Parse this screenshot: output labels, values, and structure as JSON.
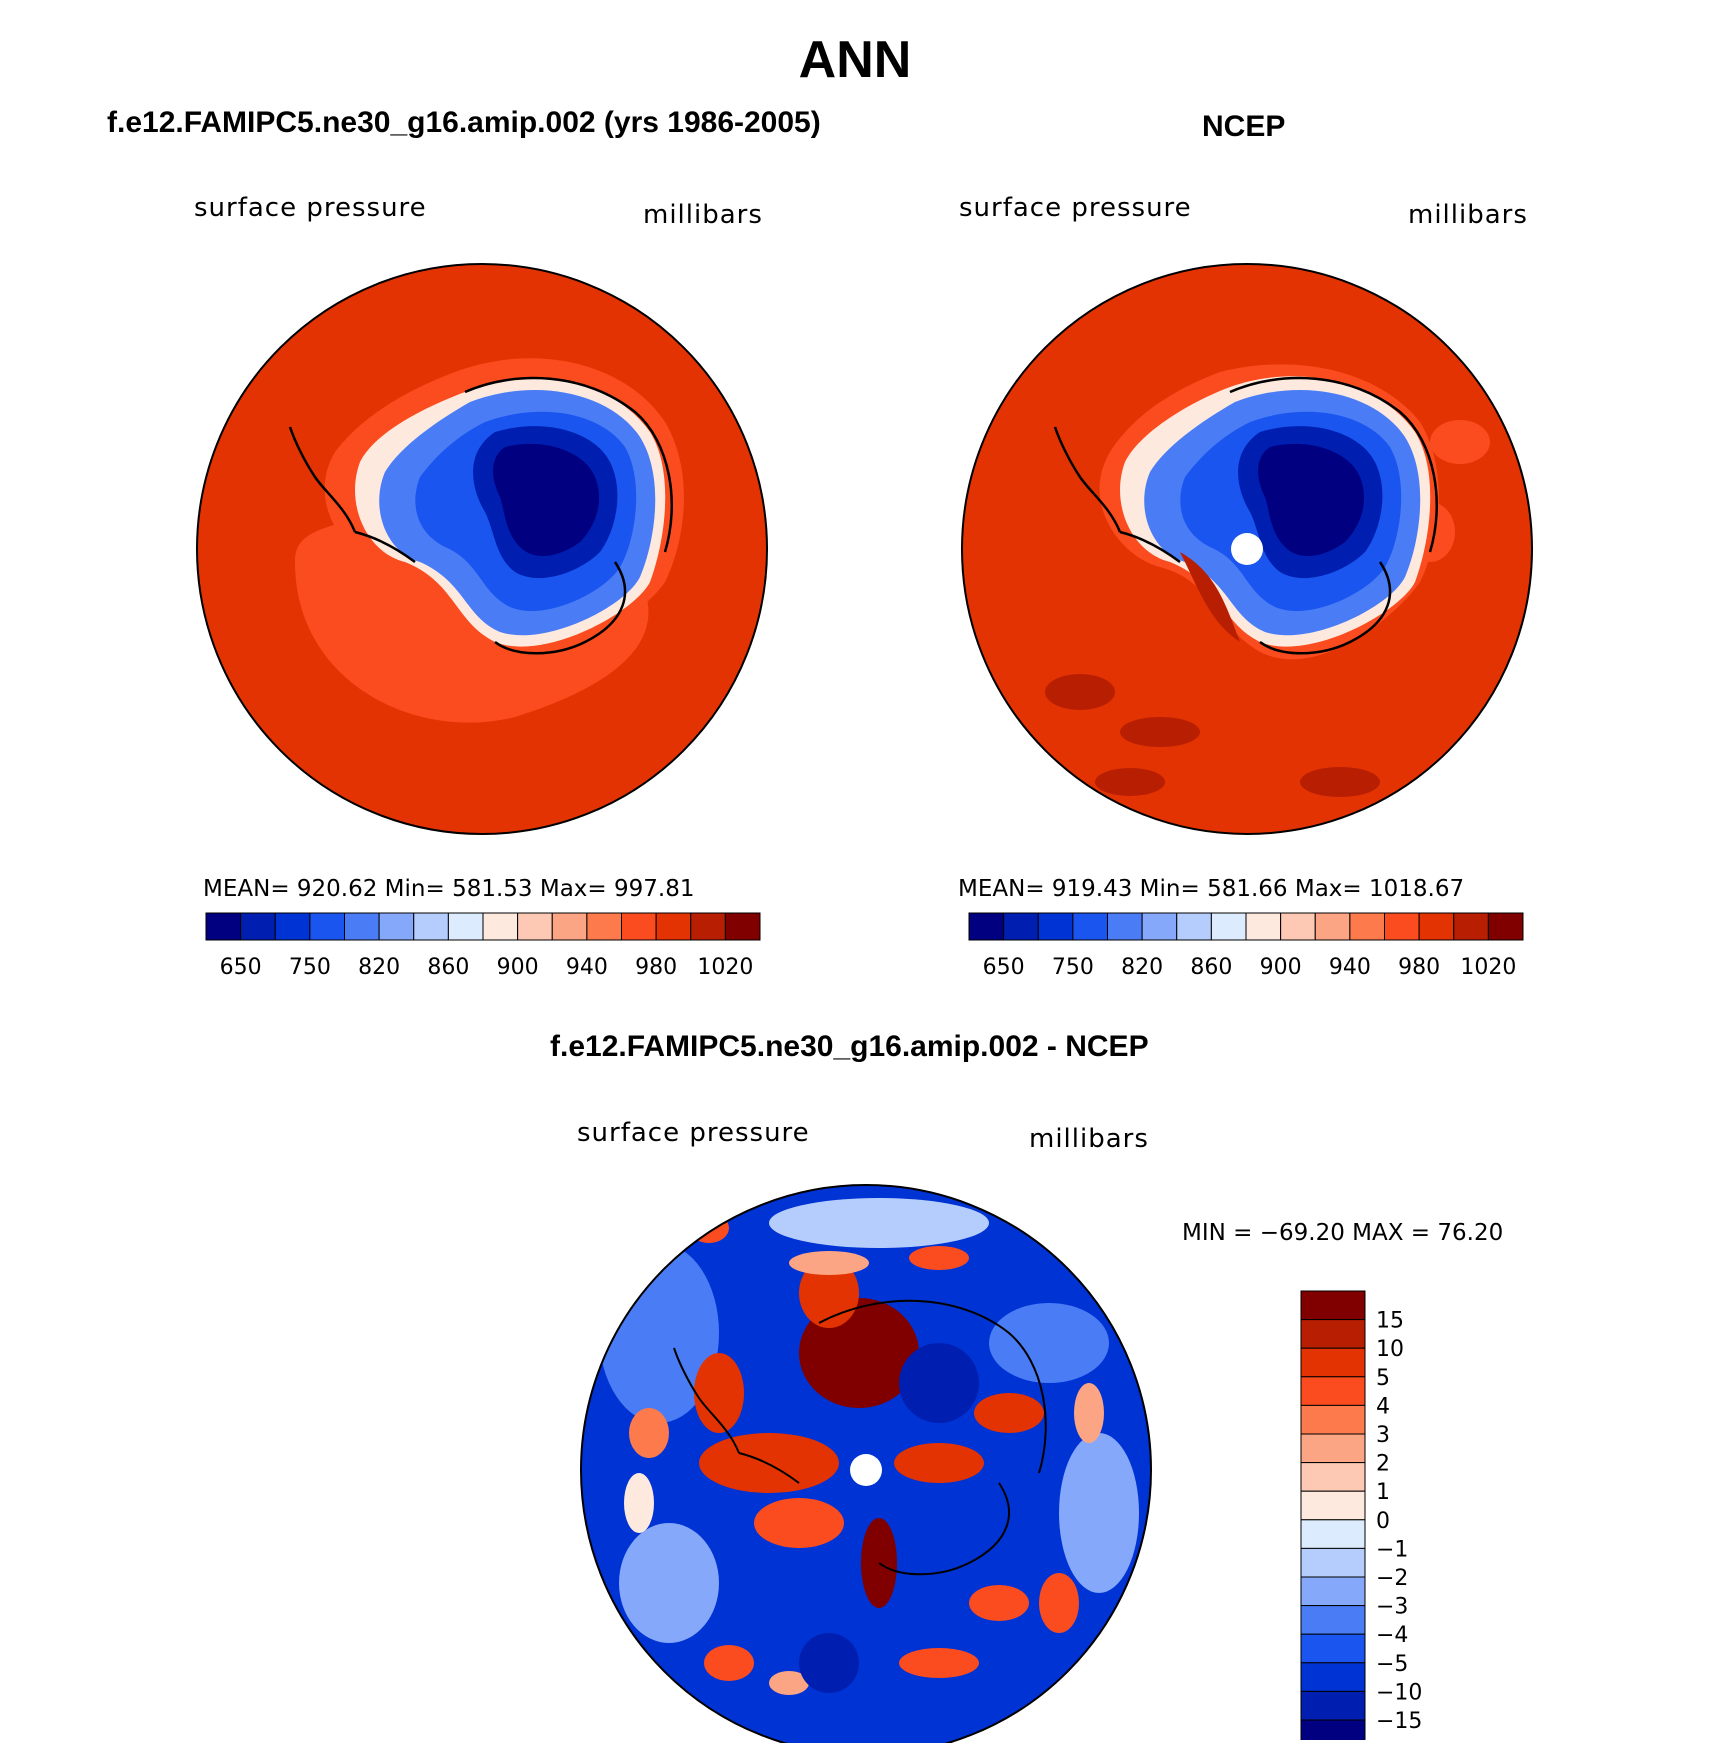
{
  "title": "ANN",
  "palettes": {
    "abs": [
      "#000080",
      "#001fb0",
      "#0033d4",
      "#1a55f0",
      "#4a7df5",
      "#86a8fa",
      "#b5cdfd",
      "#dcebfd",
      "#fde9de",
      "#fdc8b4",
      "#fca584",
      "#fc7a4c",
      "#fa4c1e",
      "#e33302",
      "#b81e02",
      "#800000"
    ],
    "diff": [
      "#000080",
      "#001fb0",
      "#0033d4",
      "#1a55f0",
      "#4a7df5",
      "#86a8fa",
      "#b5cdfd",
      "#dcebfd",
      "#fde9de",
      "#fdc8b4",
      "#fca584",
      "#fc7a4c",
      "#fa4c1e",
      "#e33302",
      "#b81e02",
      "#800000"
    ]
  },
  "panels": [
    {
      "title": "f.e12.FAMIPC5.ne30_g16.amip.002 (yrs 1986-2005)",
      "left_label": "surface pressure",
      "right_label": "millibars",
      "stats": "MEAN= 920.62   Min= 581.53   Max= 997.81",
      "colorbar_labels": [
        "650",
        "750",
        "820",
        "860",
        "900",
        "940",
        "980",
        "1020"
      ]
    },
    {
      "title": "NCEP",
      "left_label": "surface pressure",
      "right_label": "millibars",
      "stats": "MEAN= 919.43   Min= 581.66   Max= 1018.67",
      "colorbar_labels": [
        "650",
        "750",
        "820",
        "860",
        "900",
        "940",
        "980",
        "1020"
      ]
    },
    {
      "title": "f.e12.FAMIPC5.ne30_g16.amip.002 - NCEP",
      "left_label": "surface pressure",
      "right_label": "millibars",
      "stats": "MIN = −69.20 MAX =   76.20",
      "colorbar_labels": [
        "15",
        "10",
        "5",
        "4",
        "3",
        "2",
        "1",
        "0",
        "−1",
        "−2",
        "−3",
        "−4",
        "−5",
        "−10",
        "−15"
      ]
    }
  ]
}
